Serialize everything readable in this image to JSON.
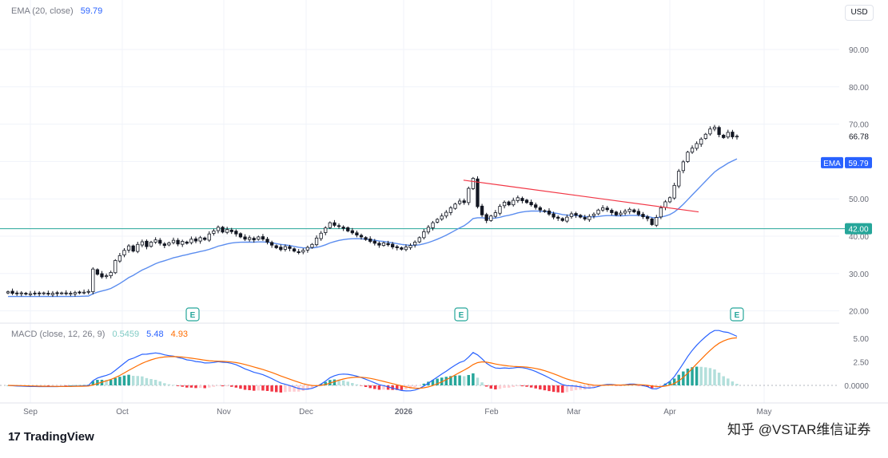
{
  "toolbar": {
    "currency": "USD"
  },
  "legend_ema": {
    "label": "EMA (20, close)",
    "value": "59.79",
    "color": "#2962ff"
  },
  "legend_macd": {
    "label": "MACD (close, 12, 26, 9)",
    "hist": "0.5459",
    "macd": "5.48",
    "signal": "4.93",
    "hist_color": "#80cbc4",
    "macd_color": "#2962ff",
    "signal_color": "#ff6d00"
  },
  "price_badges": {
    "last_price": "66.78",
    "ema_label": "EMA",
    "ema_value": "59.79",
    "hline_value": "42.00"
  },
  "brand": {
    "logo_text": "TradingView",
    "watermark": "知乎 @VSTAR维信证券"
  },
  "earnings_marker": "E",
  "chart_data": [
    {
      "type": "candlestick",
      "x_labels": [
        "Sep",
        "Oct",
        "Nov",
        "Dec",
        "2026",
        "Feb",
        "Mar",
        "Apr",
        "May"
      ],
      "y_ticks": [
        "20.00",
        "30.00",
        "40.00",
        "50.00",
        "60.00",
        "70.00",
        "80.00",
        "90.00"
      ],
      "ylim": [
        20,
        95
      ],
      "ema_period": 20,
      "horizontal_line": {
        "value": 42.0,
        "color": "#26a69a"
      },
      "trendline": {
        "from": [
          55.0
        ],
        "to": [
          46.5
        ],
        "color": "#f23645"
      },
      "earnings_events": [
        "Oct",
        "Jan",
        "Apr"
      ],
      "closes": [
        25.1,
        24.7,
        24.6,
        24.8,
        24.5,
        24.6,
        24.7,
        24.6,
        24.8,
        24.5,
        24.7,
        24.6,
        24.8,
        24.6,
        24.7,
        24.9,
        24.8,
        25.0,
        25.2,
        31.2,
        29.8,
        29.1,
        29.4,
        30.3,
        33.5,
        34.8,
        36.2,
        37.4,
        36.0,
        37.8,
        38.5,
        37.2,
        38.4,
        39.0,
        38.1,
        37.5,
        38.2,
        38.9,
        37.9,
        38.6,
        38.1,
        39.2,
        38.7,
        39.6,
        39.1,
        40.6,
        41.4,
        42.4,
        41.1,
        41.8,
        41.2,
        40.6,
        39.8,
        39.2,
        39.6,
        39.0,
        39.8,
        39.2,
        38.4,
        37.6,
        36.9,
        36.4,
        37.2,
        36.7,
        36.0,
        35.6,
        36.2,
        37.0,
        37.8,
        39.5,
        40.8,
        42.2,
        43.6,
        42.9,
        42.6,
        42.1,
        41.4,
        40.9,
        40.3,
        39.8,
        39.1,
        38.6,
        38.1,
        37.6,
        38.2,
        37.7,
        37.1,
        36.9,
        36.5,
        37.1,
        37.5,
        38.4,
        39.6,
        41.2,
        42.4,
        43.6,
        44.5,
        45.4,
        46.4,
        47.6,
        48.6,
        49.4,
        49.0,
        52.8,
        55.5,
        47.9,
        45.7,
        44.2,
        45.4,
        46.3,
        48.0,
        49.1,
        48.4,
        49.6,
        50.3,
        49.5,
        49.0,
        48.4,
        47.7,
        47.0,
        46.6,
        45.9,
        45.1,
        44.8,
        44.2,
        45.1,
        46.0,
        45.6,
        45.1,
        44.6,
        45.3,
        45.9,
        47.0,
        47.6,
        47.1,
        46.3,
        45.7,
        46.2,
        46.7,
        47.2,
        46.5,
        45.8,
        45.2,
        44.7,
        43.1,
        45.0,
        47.6,
        49.2,
        50.3,
        53.6,
        57.4,
        59.9,
        62.5,
        63.6,
        64.8,
        66.0,
        67.3,
        68.7,
        69.2,
        67.2,
        66.4,
        67.8,
        66.6,
        66.78
      ],
      "ema_line_color": "#5b8def"
    },
    {
      "type": "macd",
      "title": "MACD (close, 12, 26, 9)",
      "params": [
        12,
        26,
        9
      ],
      "y_ticks": [
        "0.0000",
        "2.50",
        "5.00"
      ],
      "ylim": [
        -1.0,
        6.0
      ],
      "last": {
        "histogram": 0.5459,
        "macd": 5.48,
        "signal": 4.93
      },
      "colors": {
        "macd": "#2962ff",
        "signal": "#ff6d00",
        "hist_pos_strong": "#26a69a",
        "hist_pos_weak": "#b2dfdb",
        "hist_neg_strong": "#f23645",
        "hist_neg_weak": "#ffcdd2"
      }
    }
  ]
}
